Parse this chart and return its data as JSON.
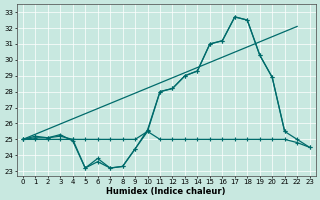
{
  "xlabel": "Humidex (Indice chaleur)",
  "xlim": [
    -0.5,
    23.5
  ],
  "ylim": [
    22.7,
    33.5
  ],
  "yticks": [
    23,
    24,
    25,
    26,
    27,
    28,
    29,
    30,
    31,
    32,
    33
  ],
  "xticks": [
    0,
    1,
    2,
    3,
    4,
    5,
    6,
    7,
    8,
    9,
    10,
    11,
    12,
    13,
    14,
    15,
    16,
    17,
    18,
    19,
    20,
    21,
    22,
    23
  ],
  "bg_color": "#c8e8e0",
  "grid_color": "#ffffff",
  "line_color": "#006b6b",
  "line1_x": [
    0,
    1,
    2,
    3,
    4,
    5,
    6,
    7,
    8,
    9,
    10,
    11,
    12,
    13,
    14,
    15,
    16,
    17,
    18,
    19,
    20,
    21,
    22,
    23
  ],
  "line1_y": [
    25.0,
    25.1,
    25.1,
    25.2,
    25.0,
    23.2,
    23.6,
    23.2,
    23.3,
    24.4,
    25.5,
    25.0,
    25.0,
    25.0,
    25.0,
    25.0,
    25.0,
    25.0,
    25.0,
    25.0,
    25.0,
    25.0,
    24.8,
    24.5
  ],
  "line2_x": [
    0,
    1,
    2,
    3,
    4,
    5,
    6,
    7,
    8,
    9,
    10,
    11,
    12,
    13,
    14,
    15,
    16,
    17,
    18,
    19,
    20,
    21
  ],
  "line2_y": [
    25.0,
    25.2,
    25.1,
    25.3,
    24.9,
    23.2,
    23.8,
    23.2,
    23.3,
    24.4,
    25.6,
    28.0,
    28.2,
    29.0,
    29.3,
    31.0,
    31.2,
    32.7,
    32.5,
    30.3,
    28.9,
    25.5
  ],
  "line3_x": [
    0,
    22
  ],
  "line3_y": [
    25.0,
    32.1
  ],
  "line4_x": [
    0,
    1,
    2,
    3,
    4,
    5,
    6,
    7,
    8,
    9,
    10,
    11,
    12,
    13,
    14,
    15,
    16,
    17,
    18,
    19,
    20,
    21,
    22,
    23
  ],
  "line4_y": [
    25.0,
    25.0,
    25.0,
    25.0,
    25.0,
    25.0,
    25.0,
    25.0,
    25.0,
    25.0,
    25.5,
    28.0,
    28.2,
    29.0,
    29.3,
    31.0,
    31.2,
    32.7,
    32.5,
    30.3,
    28.9,
    25.5,
    25.0,
    24.5
  ]
}
